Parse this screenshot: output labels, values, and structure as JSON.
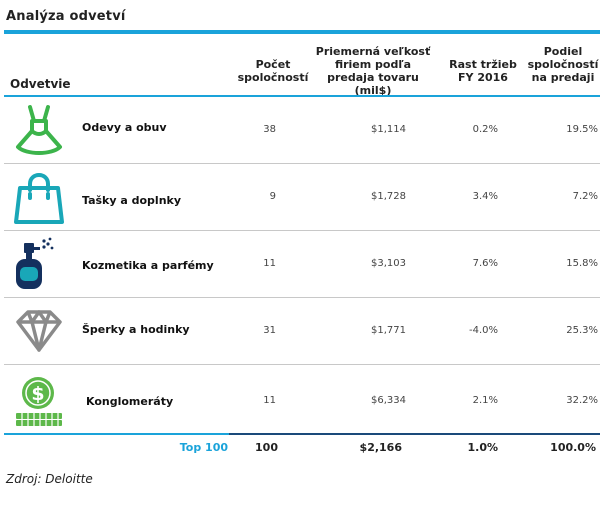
{
  "title": "Analýza odvetví",
  "headers": {
    "industry": "Odvetvie",
    "count": "Počet\nspoločností",
    "avg_size": "Priemerná veľkosť\nfiriem podľa\npredaja tovaru (mil$)",
    "growth": "Rast tržieb\nFY 2016",
    "share": "Podiel\nspoločností\nna predaji"
  },
  "rows": [
    {
      "name": "Odevy a obuv",
      "count": "38",
      "avg_size": "$1,114",
      "growth": "0.2%",
      "share": "19.5%",
      "icon": "dress-icon"
    },
    {
      "name": "Tašky a doplnky",
      "count": "9",
      "avg_size": "$1,728",
      "growth": "3.4%",
      "share": "7.2%",
      "icon": "bag-icon"
    },
    {
      "name": "Kozmetika a parfémy",
      "count": "11",
      "avg_size": "$3,103",
      "growth": "7.6%",
      "share": "15.8%",
      "icon": "perfume-icon"
    },
    {
      "name": "Šperky a hodinky",
      "count": "31",
      "avg_size": "$1,771",
      "growth": "-4.0%",
      "share": "25.3%",
      "icon": "diamond-icon"
    },
    {
      "name": "Konglomeráty",
      "count": "11",
      "avg_size": "$6,334",
      "growth": "2.1%",
      "share": "32.2%",
      "icon": "money-coins-icon"
    }
  ],
  "total": {
    "label": "Top 100",
    "count": "100",
    "avg_size": "$2,166",
    "growth": "1.0%",
    "share": "100.0%"
  },
  "source": "Zdroj: Deloitte",
  "colors": {
    "accent": "#1aa3da",
    "dress": "#3cb44b",
    "bag": "#19a7b8",
    "perfume": "#14305e",
    "diamond": "#8a8a8a",
    "money": "#5db84a"
  }
}
